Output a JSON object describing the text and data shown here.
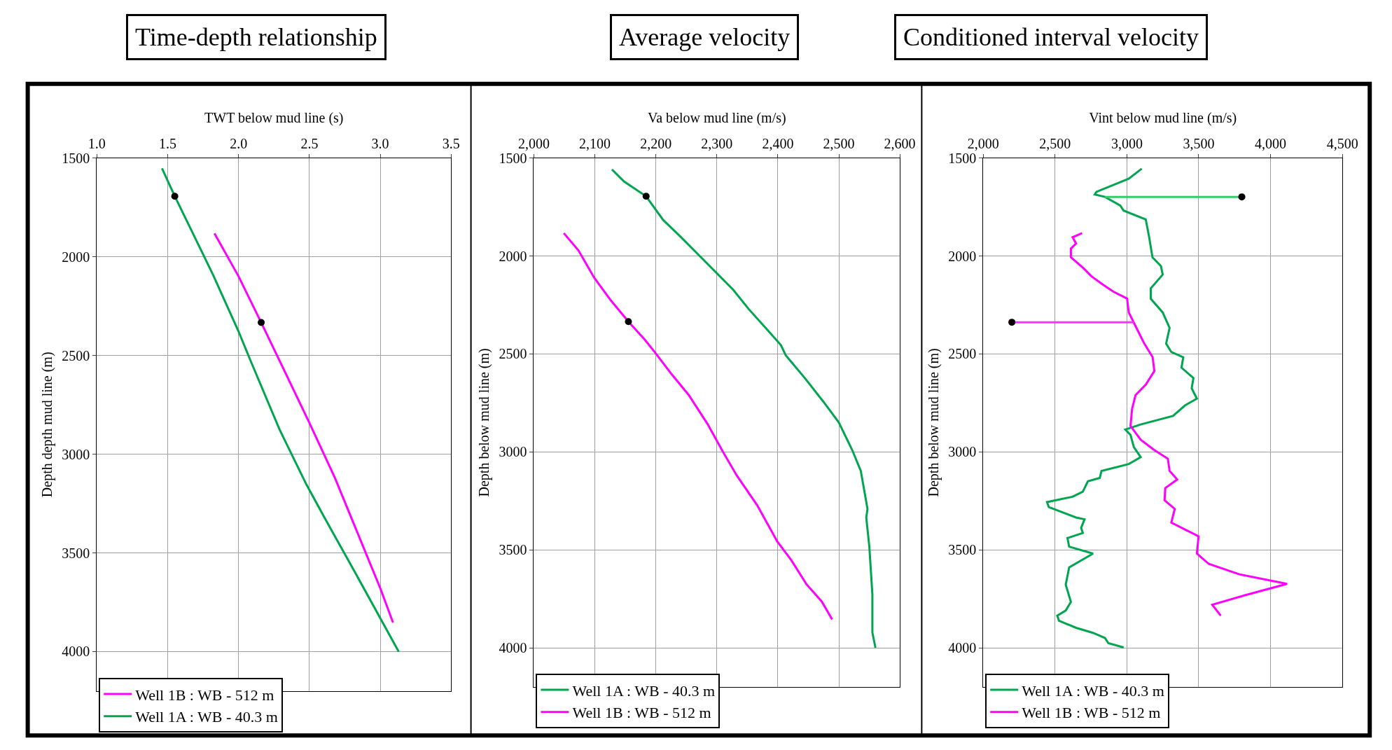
{
  "chart_data": [
    {
      "type": "line",
      "title": "Time-depth relationship",
      "xlabel": "TWT below mud line (s)",
      "ylabel": "Depth depth mud line (m)",
      "xlim": [
        1.0,
        3.5
      ],
      "xticks": [
        {
          "value": 1.0,
          "label": "1.0"
        },
        {
          "value": 1.5,
          "label": "1.5"
        },
        {
          "value": 2.0,
          "label": "2.0"
        },
        {
          "value": 2.5,
          "label": "2.5"
        },
        {
          "value": 3.0,
          "label": "3.0"
        },
        {
          "value": 3.5,
          "label": "3.5"
        }
      ],
      "ylim": [
        4200,
        1500
      ],
      "yticks": [
        1500,
        2000,
        2500,
        3000,
        3500,
        4000
      ],
      "grid": true,
      "legend": "bottom left",
      "series": [
        {
          "name": "Well 1B : WB - 512 m",
          "color": "#ff00ff",
          "x": [
            1.83,
            2.0,
            2.16,
            2.5,
            2.68,
            2.88,
            3.0,
            3.09
          ],
          "values": [
            1881,
            2099,
            2333,
            2841,
            3120,
            3469,
            3679,
            3853
          ]
        },
        {
          "name": "Well 1A : WB - 40.3 m",
          "color": "#00a64f",
          "x": [
            1.46,
            1.55,
            1.63,
            1.82,
            2.0,
            2.08,
            2.29,
            2.48,
            2.6,
            2.83,
            3.13
          ],
          "values": [
            1552,
            1693,
            1811,
            2091,
            2378,
            2518,
            2876,
            3155,
            3313,
            3609,
            4000
          ]
        },
        {
          "type": "scatter",
          "marker": "circle",
          "color": "#000000",
          "x": [
            1.55,
            2.16
          ],
          "values": [
            1693,
            2333
          ]
        }
      ]
    },
    {
      "type": "line",
      "title": "Average velocity",
      "xlabel": "Va below mud line (m/s)",
      "ylabel": "Depth below mud line (m)",
      "xlim": [
        2000,
        2600
      ],
      "xticks": [
        {
          "value": 2000,
          "label": "2,000"
        },
        {
          "value": 2100,
          "label": "2,100"
        },
        {
          "value": 2200,
          "label": "2,200"
        },
        {
          "value": 2300,
          "label": "2,300"
        },
        {
          "value": 2400,
          "label": "2,400"
        },
        {
          "value": 2500,
          "label": "2,500"
        },
        {
          "value": 2600,
          "label": "2,600"
        }
      ],
      "ylim": [
        4200,
        1500
      ],
      "yticks": [
        1500,
        2000,
        2500,
        3000,
        3500,
        4000
      ],
      "grid": true,
      "legend": "bottom left",
      "series": [
        {
          "name": "Well 1A : WB - 40.3 m",
          "color": "#00a64f",
          "x": [
            2128,
            2148,
            2184,
            2212,
            2240,
            2271,
            2299,
            2327,
            2352,
            2380,
            2405,
            2413,
            2444,
            2475,
            2500,
            2522,
            2536,
            2547,
            2545,
            2550,
            2555,
            2555,
            2560
          ],
          "values": [
            1558,
            1620,
            1695,
            1816,
            1900,
            1997,
            2085,
            2173,
            2270,
            2367,
            2455,
            2507,
            2622,
            2745,
            2850,
            2991,
            3097,
            3291,
            3335,
            3484,
            3728,
            3922,
            4000
          ]
        },
        {
          "name": "Well 1B : WB - 512 m",
          "color": "#ff00ff",
          "x": [
            2049,
            2073,
            2099,
            2126,
            2155,
            2182,
            2200,
            2226,
            2254,
            2285,
            2310,
            2333,
            2366,
            2399,
            2422,
            2447,
            2472,
            2489
          ],
          "values": [
            1883,
            1971,
            2111,
            2226,
            2335,
            2428,
            2498,
            2604,
            2710,
            2859,
            3000,
            3122,
            3272,
            3457,
            3553,
            3676,
            3764,
            3855
          ]
        },
        {
          "type": "scatter",
          "marker": "circle",
          "color": "#000000",
          "x": [
            2184,
            2155
          ],
          "values": [
            1695,
            2335
          ]
        }
      ]
    },
    {
      "type": "line",
      "title": "Conditioned interval velocity",
      "xlabel": "Vint below mud line (m/s)",
      "ylabel": "Depth below mud line (m)",
      "xlim": [
        2000,
        4500
      ],
      "xticks": [
        {
          "value": 2000,
          "label": "2,000"
        },
        {
          "value": 2500,
          "label": "2,500"
        },
        {
          "value": 3000,
          "label": "3,000"
        },
        {
          "value": 3500,
          "label": "3,500"
        },
        {
          "value": 4000,
          "label": "4,000"
        },
        {
          "value": 4500,
          "label": "4,500"
        }
      ],
      "ylim": [
        4200,
        1500
      ],
      "yticks": [
        1500,
        2000,
        2500,
        3000,
        3500,
        4000
      ],
      "grid": true,
      "legend": "bottom left",
      "series": [
        {
          "name": "Well 1A : WB - 40.3 m",
          "color": "#00a64f",
          "x": [
            3103,
            3013,
            2788,
            2776,
            2847,
            2953,
            2977,
            3131,
            3154,
            3178,
            3237,
            3249,
            3166,
            3166,
            3249,
            3297,
            3273,
            3309,
            3392,
            3380,
            3463,
            3451,
            3487,
            3404,
            3321,
            3096,
            2989,
            3025,
            3048,
            3096,
            3013,
            2823,
            2811,
            2728,
            2693,
            2621,
            2444,
            2456,
            2646,
            2705,
            2681,
            2693,
            2586,
            2598,
            2764,
            2598,
            2574,
            2610,
            2574,
            2515,
            2527,
            2646,
            2764,
            2847,
            2871,
            2977
          ],
          "values": [
            1554,
            1605,
            1672,
            1686,
            1698,
            1742,
            1768,
            1813,
            1900,
            2007,
            2051,
            2095,
            2165,
            2218,
            2288,
            2367,
            2447,
            2490,
            2517,
            2570,
            2623,
            2675,
            2728,
            2763,
            2816,
            2860,
            2886,
            2913,
            2975,
            3027,
            3062,
            3097,
            3133,
            3150,
            3203,
            3229,
            3256,
            3282,
            3335,
            3344,
            3388,
            3414,
            3440,
            3484,
            3519,
            3590,
            3678,
            3766,
            3810,
            3836,
            3862,
            3898,
            3924,
            3950,
            3977,
            3998
          ]
        },
        {
          "name": "Well 1B : WB - 512 m",
          "color": "#ff00ff",
          "x": [
            2688,
            2622,
            2646,
            2610,
            2610,
            2693,
            2752,
            2835,
            2906,
            3001,
            3013,
            3048,
            3084,
            3120,
            3179,
            3191,
            3131,
            3060,
            3036,
            3025,
            3096,
            3191,
            3285,
            3297,
            3350,
            3267,
            3262,
            3333,
            3309,
            3404,
            3499,
            3487,
            3570,
            3783,
            4115,
            3831,
            3594,
            3653
          ],
          "values": [
            1883,
            1904,
            1936,
            1962,
            2006,
            2059,
            2103,
            2147,
            2182,
            2217,
            2288,
            2340,
            2393,
            2446,
            2516,
            2587,
            2657,
            2710,
            2780,
            2868,
            2938,
            2991,
            3035,
            3097,
            3141,
            3185,
            3247,
            3291,
            3361,
            3396,
            3431,
            3519,
            3572,
            3625,
            3674,
            3730,
            3780,
            3836
          ]
        },
        {
          "type": "line",
          "color": "#33cc66",
          "x": [
            2847,
            3800
          ],
          "values": [
            1698,
            1698
          ]
        },
        {
          "type": "line",
          "color": "#ff33ff",
          "x": [
            3048,
            2199
          ],
          "values": [
            2338,
            2338
          ]
        },
        {
          "type": "scatter",
          "marker": "circle",
          "color": "#000000",
          "x": [
            3800,
            2199
          ],
          "values": [
            1698,
            2338
          ]
        }
      ]
    }
  ]
}
